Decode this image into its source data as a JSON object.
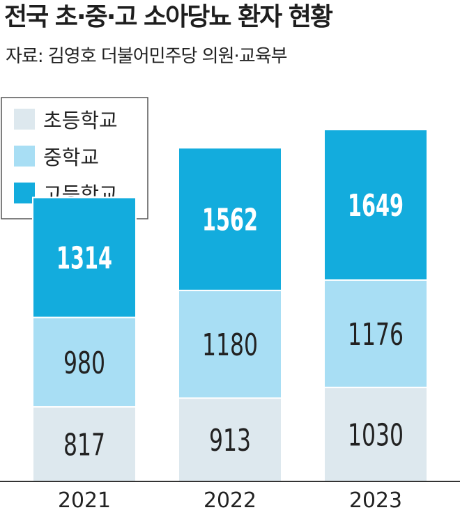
{
  "title": "전국 초·중·고 소아당뇨 환자 현황",
  "source": "자료: 김영호 더불어민주당 의원·교육부",
  "colors": {
    "elementary": "#dde8ee",
    "middle": "#a8def4",
    "high": "#13acdd"
  },
  "chart_data": {
    "type": "bar",
    "stacked": true,
    "categories": [
      "2021",
      "2022",
      "2023"
    ],
    "series": [
      {
        "name": "초등학교",
        "values": [
          817,
          913,
          1030
        ]
      },
      {
        "name": "중학교",
        "values": [
          980,
          1180,
          1176
        ]
      },
      {
        "name": "고등학교",
        "values": [
          1314,
          1562,
          1649
        ]
      }
    ],
    "legend": [
      "초등학교",
      "중학교",
      "고등학교"
    ],
    "legend_position": "top-left",
    "grid": false
  }
}
